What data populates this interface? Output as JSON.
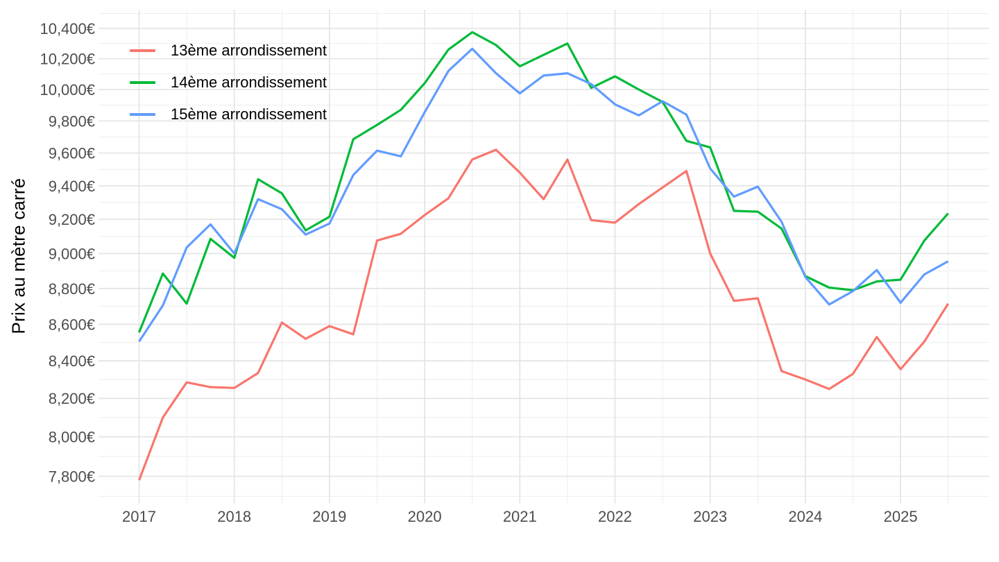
{
  "chart_data": {
    "type": "line",
    "title": "",
    "xlabel": "",
    "ylabel": "Prix au mètre carré",
    "y_scale": "log10",
    "ylim": [
      7668,
      10526
    ],
    "xlim_years": [
      2016.575,
      2025.925
    ],
    "grid": true,
    "legend_position": "inside-top-left",
    "quarters": [
      "2017-T1",
      "2017-T2",
      "2017-T3",
      "2017-T4",
      "2018-T1",
      "2018-T2",
      "2018-T3",
      "2018-T4",
      "2019-T1",
      "2019-T2",
      "2019-T3",
      "2019-T4",
      "2020-T1",
      "2020-T2",
      "2020-T3",
      "2020-T4",
      "2021-T1",
      "2021-T2",
      "2021-T3",
      "2021-T4",
      "2022-T1",
      "2022-T2",
      "2022-T3",
      "2022-T4",
      "2023-T1",
      "2023-T2",
      "2023-T3",
      "2023-T4",
      "2024-T1",
      "2024-T2",
      "2024-T3",
      "2024-T4",
      "2025-T1",
      "2025-T2",
      "2025-T3"
    ],
    "series": [
      {
        "name": "13ème arrondissement",
        "color": "#F8766D",
        "values": [
          7780,
          8100,
          8285,
          8260,
          8255,
          8335,
          8610,
          8520,
          8590,
          8545,
          9075,
          9115,
          9225,
          9325,
          9560,
          9620,
          9480,
          9320,
          9560,
          9195,
          9180,
          9290,
          9390,
          9490,
          9000,
          8730,
          8745,
          8345,
          8300,
          8250,
          8330,
          8530,
          8355,
          8505,
          8715
        ]
      },
      {
        "name": "14ème arrondissement",
        "color": "#00BA38",
        "values": [
          8555,
          8885,
          8715,
          9085,
          8975,
          9440,
          9355,
          9135,
          9215,
          9685,
          9775,
          9870,
          10040,
          10260,
          10375,
          10290,
          10150,
          10225,
          10300,
          10010,
          10085,
          10000,
          9920,
          9675,
          9635,
          9250,
          9245,
          9145,
          8870,
          8805,
          8790,
          8840,
          8850,
          9075,
          9235
        ]
      },
      {
        "name": "15ème arrondissement",
        "color": "#619CFF",
        "values": [
          8505,
          8705,
          9035,
          9170,
          9000,
          9320,
          9260,
          9110,
          9175,
          9465,
          9615,
          9580,
          9855,
          10120,
          10265,
          10105,
          9975,
          10090,
          10105,
          10035,
          9905,
          9835,
          9925,
          9840,
          9505,
          9335,
          9395,
          9185,
          8865,
          8710,
          8785,
          8905,
          8720,
          8880,
          8955
        ]
      }
    ],
    "x_ticks": [
      {
        "value": 2017,
        "label": "2017"
      },
      {
        "value": 2018,
        "label": "2018"
      },
      {
        "value": 2019,
        "label": "2019"
      },
      {
        "value": 2020,
        "label": "2020"
      },
      {
        "value": 2021,
        "label": "2021"
      },
      {
        "value": 2022,
        "label": "2022"
      },
      {
        "value": 2023,
        "label": "2023"
      },
      {
        "value": 2024,
        "label": "2024"
      },
      {
        "value": 2025,
        "label": "2025"
      }
    ],
    "y_ticks": [
      {
        "value": 7800,
        "label": "7,800€"
      },
      {
        "value": 8000,
        "label": "8,000€"
      },
      {
        "value": 8200,
        "label": "8,200€"
      },
      {
        "value": 8400,
        "label": "8,400€"
      },
      {
        "value": 8600,
        "label": "8,600€"
      },
      {
        "value": 8800,
        "label": "8,800€"
      },
      {
        "value": 9000,
        "label": "9,000€"
      },
      {
        "value": 9200,
        "label": "9,200€"
      },
      {
        "value": 9400,
        "label": "9,400€"
      },
      {
        "value": 9600,
        "label": "9,600€"
      },
      {
        "value": 9800,
        "label": "9,800€"
      },
      {
        "value": 10000,
        "label": "10,000€"
      },
      {
        "value": 10200,
        "label": "10,200€"
      },
      {
        "value": 10400,
        "label": "10,400€"
      }
    ],
    "y_minor_step": 100
  },
  "legend": {
    "items": [
      {
        "label": "13ème arrondissement",
        "color": "#F8766D"
      },
      {
        "label": "14ème arrondissement",
        "color": "#00BA38"
      },
      {
        "label": "15ème arrondissement",
        "color": "#619CFF"
      }
    ]
  },
  "colors": {
    "tick_label": "#4D4D4D",
    "grid_major": "#E4E4E4",
    "grid_minor": "#EDEDED",
    "background": "#FFFFFF"
  }
}
